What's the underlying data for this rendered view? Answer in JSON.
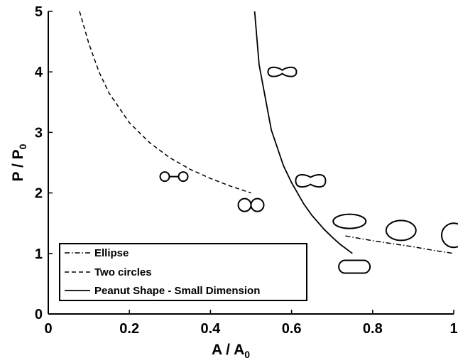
{
  "chart_data": {
    "type": "line",
    "xlabel": {
      "main": "A / A",
      "sub": "0"
    },
    "ylabel": {
      "main": "P / P",
      "sub": "0"
    },
    "xlim": [
      0,
      1
    ],
    "ylim": [
      0,
      5
    ],
    "x_ticks": [
      {
        "value": 0,
        "label": "0"
      },
      {
        "value": 0.2,
        "label": "0.2"
      },
      {
        "value": 0.4,
        "label": "0.4"
      },
      {
        "value": 0.6,
        "label": "0.6"
      },
      {
        "value": 0.8,
        "label": "0.8"
      },
      {
        "value": 1,
        "label": "1"
      }
    ],
    "y_ticks": [
      {
        "value": 0,
        "label": "0"
      },
      {
        "value": 1,
        "label": "1"
      },
      {
        "value": 2,
        "label": "2"
      },
      {
        "value": 3,
        "label": "3"
      },
      {
        "value": 4,
        "label": "4"
      },
      {
        "value": 5,
        "label": "5"
      }
    ],
    "grid": false,
    "legend_position": "bottom-left",
    "series": [
      {
        "name": "Ellipse",
        "style": "dashdot",
        "x": [
          0.733,
          0.8,
          0.85,
          0.9,
          0.95,
          1.0
        ],
        "y": [
          1.29,
          1.21,
          1.16,
          1.11,
          1.05,
          1.0
        ]
      },
      {
        "name": "Two circles",
        "style": "dashed",
        "x": [
          0.077,
          0.1,
          0.125,
          0.15,
          0.2,
          0.25,
          0.3,
          0.35,
          0.4,
          0.45,
          0.5
        ],
        "y": [
          5.0,
          4.47,
          4.0,
          3.65,
          3.16,
          2.83,
          2.58,
          2.39,
          2.24,
          2.11,
          2.0
        ]
      },
      {
        "name": "Peanut Shape - Small Dimension",
        "style": "solid",
        "x": [
          0.509,
          0.52,
          0.55,
          0.58,
          0.6,
          0.63,
          0.65,
          0.68,
          0.7,
          0.72,
          0.75
        ],
        "y": [
          5.0,
          4.12,
          3.04,
          2.45,
          2.17,
          1.82,
          1.63,
          1.4,
          1.27,
          1.15,
          1.0
        ]
      }
    ],
    "shape_markers": [
      {
        "shape": "two-circles-apart",
        "x": 0.31,
        "y": 2.27
      },
      {
        "shape": "two-circles-touching",
        "x": 0.5,
        "y": 1.8
      },
      {
        "shape": "peanut-narrow",
        "x": 0.577,
        "y": 4.0
      },
      {
        "shape": "peanut-wide",
        "x": 0.647,
        "y": 2.2
      },
      {
        "shape": "ellipse-elongated",
        "x": 0.743,
        "y": 1.53
      },
      {
        "shape": "ellipse",
        "x": 0.87,
        "y": 1.38
      },
      {
        "shape": "circle",
        "x": 1.0,
        "y": 1.3
      },
      {
        "shape": "stadium",
        "x": 0.755,
        "y": 0.78
      }
    ]
  }
}
